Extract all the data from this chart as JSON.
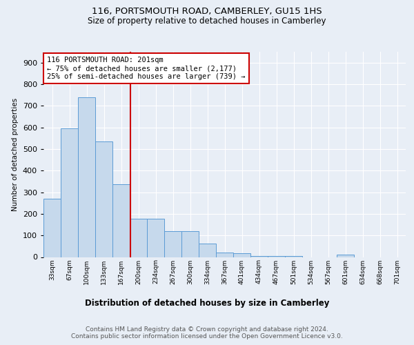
{
  "title1": "116, PORTSMOUTH ROAD, CAMBERLEY, GU15 1HS",
  "title2": "Size of property relative to detached houses in Camberley",
  "xlabel": "Distribution of detached houses by size in Camberley",
  "ylabel": "Number of detached properties",
  "footer": "Contains HM Land Registry data © Crown copyright and database right 2024.\nContains public sector information licensed under the Open Government Licence v3.0.",
  "bin_labels": [
    "33sqm",
    "67sqm",
    "100sqm",
    "133sqm",
    "167sqm",
    "200sqm",
    "234sqm",
    "267sqm",
    "300sqm",
    "334sqm",
    "367sqm",
    "401sqm",
    "434sqm",
    "467sqm",
    "501sqm",
    "534sqm",
    "567sqm",
    "601sqm",
    "634sqm",
    "668sqm",
    "701sqm"
  ],
  "bar_values": [
    270,
    595,
    740,
    535,
    338,
    178,
    178,
    120,
    120,
    63,
    20,
    18,
    5,
    5,
    5,
    0,
    0,
    12,
    0,
    0,
    0
  ],
  "bar_color": "#c6d9ec",
  "bar_edge_color": "#5b9bd5",
  "property_line_label": "116 PORTSMOUTH ROAD: 201sqm",
  "annotation_line1": "← 75% of detached houses are smaller (2,177)",
  "annotation_line2": "25% of semi-detached houses are larger (739) →",
  "annotation_box_color": "#ffffff",
  "annotation_box_edge": "#cc0000",
  "vline_color": "#cc0000",
  "vline_x_bar_index": 5.03,
  "ylim": [
    0,
    950
  ],
  "yticks": [
    0,
    100,
    200,
    300,
    400,
    500,
    600,
    700,
    800,
    900
  ],
  "background_color": "#e8eef6",
  "plot_background": "#e8eef6",
  "grid_color": "#ffffff",
  "title1_fontsize": 9.5,
  "title2_fontsize": 8.5,
  "xlabel_fontsize": 8.5,
  "ylabel_fontsize": 7.5,
  "ytick_fontsize": 8,
  "xtick_fontsize": 6.5,
  "annotation_fontsize": 7.5,
  "footer_fontsize": 6.5
}
